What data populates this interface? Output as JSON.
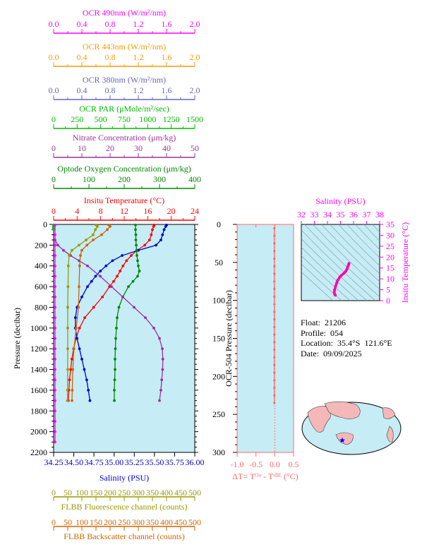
{
  "colors": {
    "ocr490": "#ff00ff",
    "ocr443": "#ff9900",
    "ocr380": "#6666bb",
    "par": "#00bb00",
    "nitrate": "#993399",
    "oxygen": "#008800",
    "temperature": "#ff0000",
    "salinity": "#0000cc",
    "fluorescence": "#999900",
    "backscatter": "#cc6600",
    "dt": "#ff6666",
    "plot_bg": "#c6ecf6",
    "ts_trace": "#ff00aa"
  },
  "info": {
    "float": "Float:  21206",
    "profile": "Profile:  054",
    "location": "Location:  35.4°S  121.6°E",
    "date": "Date:  09/09/2025"
  },
  "map": {
    "marker": "location-star",
    "marker_color": "#0000ff"
  },
  "chart_data": [
    {
      "type": "line",
      "id": "main-profile",
      "ylabel": "Pressure (decibar)",
      "ylim": [
        2200,
        0
      ],
      "yticks": [
        "0",
        "200",
        "400",
        "600",
        "800",
        "1000",
        "1200",
        "1400",
        "1600",
        "1800",
        "2000",
        "2200"
      ],
      "grid": false,
      "axes": [
        {
          "key": "ocr490",
          "label": "OCR 490nm (W/m²/nm)",
          "range": [
            0,
            2
          ],
          "ticks": [
            "0.0",
            "0.4",
            "0.8",
            "1.2",
            "1.6",
            "2.0"
          ],
          "position": "top"
        },
        {
          "key": "ocr443",
          "label": "OCR 443nm (W/m²/nm)",
          "range": [
            0,
            2
          ],
          "ticks": [
            "0.0",
            "0.4",
            "0.8",
            "1.2",
            "1.6",
            "2.0"
          ],
          "position": "top"
        },
        {
          "key": "ocr380",
          "label": "OCR 380nm (W/m²/nm)",
          "range": [
            0,
            2
          ],
          "ticks": [
            "0.0",
            "0.4",
            "0.8",
            "1.2",
            "1.6",
            "2.0"
          ],
          "position": "top"
        },
        {
          "key": "par",
          "label": "OCR PAR (μMole/m²/sec)",
          "range": [
            0,
            1500
          ],
          "ticks": [
            "0",
            "250",
            "500",
            "750",
            "1000",
            "1250",
            "1500"
          ],
          "position": "top"
        },
        {
          "key": "nitrate",
          "label": "Nitrate Concentration (μm/kg)",
          "range": [
            0,
            50
          ],
          "ticks": [
            "0",
            "10",
            "20",
            "30",
            "40",
            "50"
          ],
          "position": "top"
        },
        {
          "key": "oxygen",
          "label": "Optode Oxygen Concentration (μm/kg)",
          "range": [
            0,
            400
          ],
          "ticks": [
            "0",
            "100",
            "200",
            "300",
            "400"
          ],
          "position": "top"
        },
        {
          "key": "temperature",
          "label": "Insitu Temperature (°C)",
          "range": [
            0,
            24
          ],
          "ticks": [
            "0",
            "4",
            "8",
            "12",
            "16",
            "20",
            "24"
          ],
          "position": "top"
        },
        {
          "key": "salinity",
          "label": "Salinity (PSU)",
          "range": [
            34.25,
            36.0
          ],
          "ticks": [
            "34.25",
            "34.50",
            "34.75",
            "35.00",
            "35.25",
            "35.50",
            "35.75",
            "36.00"
          ],
          "position": "bottom"
        },
        {
          "key": "fluorescence",
          "label": "FLBB Fluorescence channel (counts)",
          "range": [
            0,
            500
          ],
          "ticks": [
            "0",
            "50",
            "100",
            "150",
            "200",
            "250",
            "300",
            "350",
            "400",
            "450",
            "500"
          ],
          "position": "bottom"
        },
        {
          "key": "backscatter",
          "label": "FLBB Backscatter channel (counts)",
          "range": [
            0,
            500
          ],
          "ticks": [
            "0",
            "50",
            "100",
            "150",
            "200",
            "250",
            "300",
            "350",
            "400",
            "450",
            "500"
          ],
          "position": "bottom"
        }
      ],
      "series": [
        {
          "key": "temperature",
          "p": [
            5,
            20,
            50,
            100,
            150,
            200,
            250,
            300,
            350,
            400,
            450,
            500,
            550,
            600,
            700,
            800,
            900,
            1000,
            1100,
            1200,
            1300,
            1400,
            1500,
            1600,
            1700
          ],
          "values": [
            17.1,
            17.0,
            16.8,
            16.6,
            16.3,
            15.5,
            14.2,
            13.2,
            12.4,
            11.8,
            11.3,
            10.8,
            10.2,
            9.5,
            8.3,
            6.8,
            5.3,
            4.4,
            3.8,
            3.4,
            3.1,
            2.9,
            2.7,
            2.6,
            2.5
          ]
        },
        {
          "key": "salinity",
          "p": [
            5,
            20,
            50,
            100,
            150,
            200,
            250,
            300,
            350,
            400,
            450,
            500,
            550,
            600,
            700,
            800,
            900,
            1000,
            1100,
            1200,
            1300,
            1400,
            1500,
            1600,
            1700
          ],
          "values": [
            35.65,
            35.64,
            35.62,
            35.6,
            35.58,
            35.52,
            35.3,
            35.1,
            34.98,
            34.9,
            34.83,
            34.77,
            34.72,
            34.67,
            34.6,
            34.54,
            34.52,
            34.52,
            34.54,
            34.57,
            34.6,
            34.63,
            34.66,
            34.68,
            34.7
          ]
        },
        {
          "key": "oxygen",
          "p": [
            5,
            50,
            100,
            150,
            200,
            250,
            300,
            350,
            400,
            450,
            500,
            550,
            600,
            700,
            800,
            900,
            1000,
            1100,
            1200,
            1300,
            1400,
            1500,
            1600,
            1700
          ],
          "values": [
            232,
            232,
            233,
            233,
            234,
            235,
            236,
            238,
            240,
            243,
            238,
            225,
            212,
            196,
            185,
            180,
            178,
            176,
            175,
            174,
            174,
            173,
            172,
            172
          ]
        },
        {
          "key": "nitrate",
          "p": [
            150,
            200,
            250,
            300,
            350,
            400,
            500,
            600,
            700,
            800,
            900,
            1000,
            1100,
            1200,
            1300,
            1400,
            1500,
            1600,
            1700
          ],
          "values": [
            0.5,
            1.5,
            3.5,
            6.0,
            9.0,
            12.0,
            16.5,
            20.5,
            24.5,
            28.5,
            32.5,
            35.5,
            37.5,
            38.5,
            38.7,
            38.6,
            38.3,
            38.0,
            37.5
          ]
        },
        {
          "key": "par",
          "p": [
            5,
            10,
            15,
            20,
            25,
            30,
            35,
            40,
            45,
            50
          ],
          "values": [
            0,
            0,
            0,
            0,
            0,
            0,
            0,
            0,
            0,
            0
          ]
        },
        {
          "key": "ocr490",
          "p": [
            5,
            100,
            200,
            300,
            400,
            500,
            600,
            700,
            800,
            900,
            1000,
            1100,
            1200,
            1300,
            1400,
            1500,
            1600,
            1700,
            1800,
            1900,
            2000,
            2100
          ],
          "values": [
            0.02,
            0.02,
            0.02,
            0.02,
            0.02,
            0.02,
            0.02,
            0.02,
            0.02,
            0.02,
            0.02,
            0.02,
            0.02,
            0.02,
            0.02,
            0.02,
            0.02,
            0.02,
            0.02,
            0.02,
            0.02,
            0.02
          ]
        },
        {
          "key": "fluorescence",
          "p": [
            5,
            20,
            50,
            100,
            150,
            200,
            250,
            300,
            400,
            600,
            800,
            1000,
            1200,
            1400,
            1600,
            1700
          ],
          "values": [
            150,
            155,
            148,
            140,
            115,
            90,
            65,
            55,
            52,
            51,
            50,
            50,
            50,
            50,
            49,
            49
          ]
        },
        {
          "key": "backscatter",
          "p": [
            5,
            20,
            50,
            100,
            150,
            200,
            250,
            300,
            400,
            600,
            800,
            1000,
            1200,
            1400,
            1600,
            1700
          ],
          "values": [
            195,
            200,
            190,
            170,
            140,
            118,
            100,
            95,
            92,
            90,
            88,
            80,
            72,
            68,
            66,
            65
          ]
        }
      ]
    },
    {
      "type": "line",
      "id": "delta-t",
      "ylabel": "OCR-504 Pressure (decibar)",
      "ylim": [
        300,
        0
      ],
      "yticks": [
        "0",
        "50",
        "100",
        "150",
        "200",
        "250",
        "300"
      ],
      "xlabel": "ΔT= Tᴼᶦᶦ - Tˢᴮᴱ (°C)",
      "xlim": [
        -1.0,
        0.5
      ],
      "xticks": [
        "-1.0",
        "-0.5",
        "0.0",
        "0.5"
      ],
      "series": [
        {
          "key": "dt",
          "p": [
            5,
            15,
            25,
            35,
            45,
            55,
            65,
            75,
            85,
            95,
            105,
            115,
            125,
            135,
            145,
            155,
            165,
            175,
            185,
            195,
            205,
            215,
            225,
            235
          ],
          "values": [
            -0.01,
            -0.01,
            -0.01,
            -0.01,
            -0.01,
            -0.01,
            -0.01,
            -0.01,
            -0.01,
            -0.01,
            -0.01,
            -0.01,
            -0.01,
            -0.01,
            -0.01,
            -0.01,
            -0.01,
            -0.01,
            -0.01,
            -0.01,
            -0.01,
            -0.01,
            -0.01,
            -0.01
          ]
        }
      ]
    },
    {
      "type": "scatter",
      "id": "ts-diagram",
      "xlabel": "Salinity (PSU)",
      "ylabel": "Insitu Temperature (°C)",
      "xlim": [
        32,
        38
      ],
      "ylim": [
        0,
        35
      ],
      "xticks": [
        "32",
        "33",
        "34",
        "35",
        "36",
        "37",
        "38"
      ],
      "yticks": [
        "0",
        "5",
        "10",
        "15",
        "20",
        "25",
        "30",
        "35"
      ],
      "series": [
        {
          "key": "ts",
          "x": [
            34.6,
            34.55,
            34.52,
            34.55,
            34.62,
            34.7,
            34.8,
            34.95,
            35.1,
            35.25,
            35.4,
            35.5,
            35.55,
            35.62,
            35.65
          ],
          "y": [
            2.5,
            3.0,
            3.8,
            5.0,
            6.5,
            8.0,
            9.5,
            10.8,
            11.8,
            12.5,
            13.5,
            14.5,
            15.5,
            16.5,
            17.1
          ]
        }
      ]
    }
  ]
}
